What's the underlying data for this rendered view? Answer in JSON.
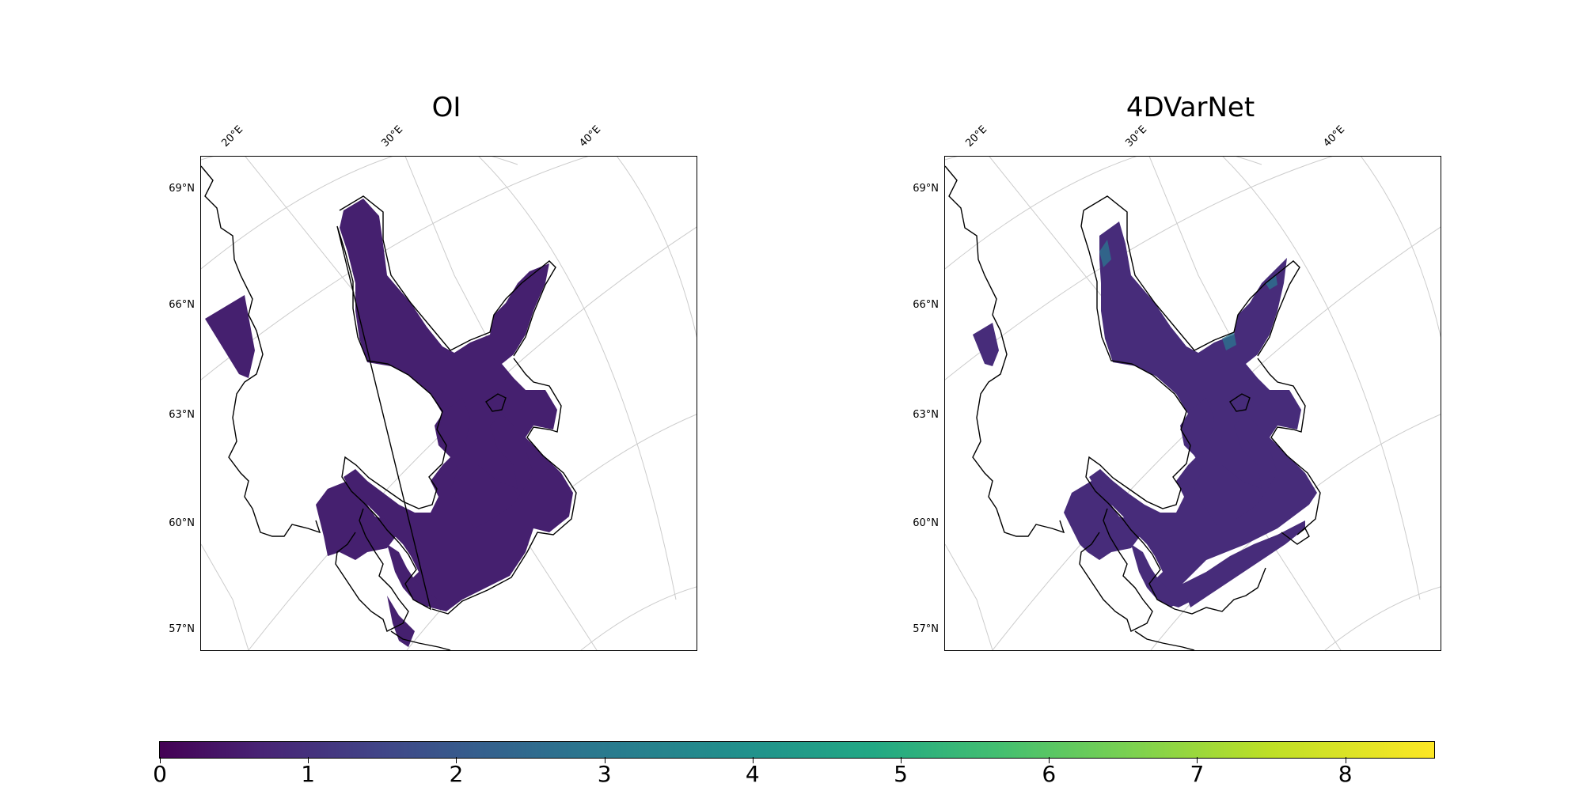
{
  "panels": [
    {
      "title": "OI"
    },
    {
      "title": "4DVarNet"
    }
  ],
  "lat_labels": [
    "69°N",
    "66°N",
    "63°N",
    "60°N",
    "57°N"
  ],
  "lon_labels": [
    "20°E",
    "30°E",
    "40°E"
  ],
  "colorbar": {
    "colormap": "viridis",
    "ticks": [
      "0",
      "1",
      "2",
      "3",
      "4",
      "5",
      "6",
      "7",
      "8"
    ],
    "min": 0,
    "max": 8.6
  },
  "colors": {
    "field_oi": "#45206f",
    "field_4dvarnet": "#472c7a",
    "coastline": "#000000",
    "graticule": "#cccccc"
  }
}
